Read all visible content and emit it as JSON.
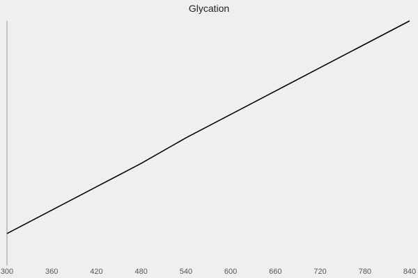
{
  "chart_data": {
    "type": "line",
    "title": "Glycation",
    "xlabel": "",
    "ylabel": "",
    "x": [
      300,
      480,
      540,
      840
    ],
    "series": [
      {
        "values": [
          0.0,
          0.33,
          0.45,
          1.0
        ]
      }
    ],
    "xlim": [
      300,
      840
    ],
    "ylim": [
      -0.15,
      1.0
    ],
    "xticks": [
      300,
      360,
      420,
      480,
      540,
      600,
      660,
      720,
      780,
      840
    ],
    "grid": false,
    "colors": {
      "line": "#000000",
      "axis": "#999999",
      "background": "#efefef"
    }
  }
}
